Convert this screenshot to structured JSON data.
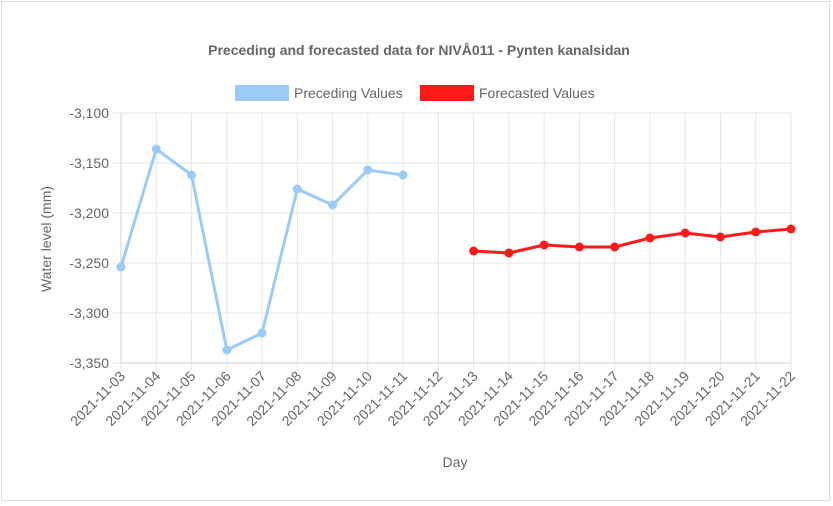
{
  "chart_data": {
    "type": "line",
    "title": "Preceding and forecasted data for NIVÅ011 - Pynten kanalsidan",
    "xlabel": "Day",
    "ylabel": "Water level (mm)",
    "ylim": [
      -3350,
      -3100
    ],
    "yticks": [
      -3100,
      -3150,
      -3200,
      -3250,
      -3300,
      -3350
    ],
    "ytick_labels": [
      "-3,100",
      "-3,150",
      "-3,200",
      "-3,250",
      "-3,300",
      "-3,350"
    ],
    "grid": true,
    "legend_position": "top",
    "categories": [
      "2021-11-03",
      "2021-11-04",
      "2021-11-05",
      "2021-11-06",
      "2021-11-07",
      "2021-11-08",
      "2021-11-09",
      "2021-11-10",
      "2021-11-11",
      "2021-11-12",
      "2021-11-13",
      "2021-11-14",
      "2021-11-15",
      "2021-11-16",
      "2021-11-17",
      "2021-11-18",
      "2021-11-19",
      "2021-11-20",
      "2021-11-21",
      "2021-11-22"
    ],
    "series": [
      {
        "name": "Preceding Values",
        "color": "#9ccbf7",
        "values": [
          -3254,
          -3136,
          -3162,
          -3337,
          -3320,
          -3176,
          -3192,
          -3157,
          -3162,
          null,
          null,
          null,
          null,
          null,
          null,
          null,
          null,
          null,
          null,
          null
        ]
      },
      {
        "name": "Forecasted Values",
        "color": "#ff1a1a",
        "values": [
          null,
          null,
          null,
          null,
          null,
          null,
          null,
          null,
          null,
          null,
          -3238,
          -3240,
          -3232,
          -3234,
          -3234,
          -3225,
          -3220,
          -3224,
          -3219,
          -3216
        ]
      }
    ]
  }
}
